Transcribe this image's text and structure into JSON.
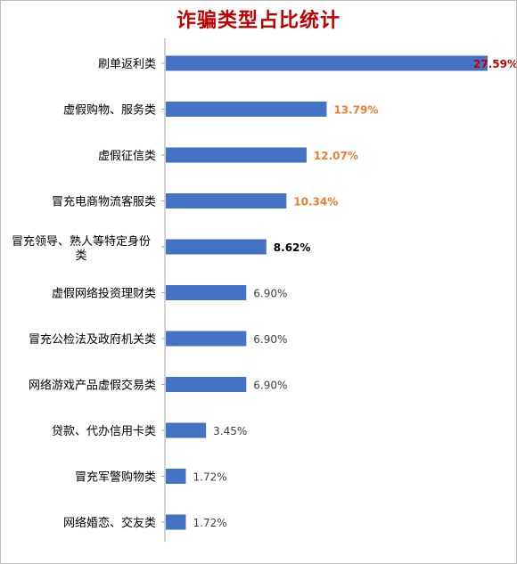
{
  "chart_data": {
    "type": "bar",
    "orientation": "horizontal",
    "title": "诈骗类型占比统计",
    "title_color": "#c00000",
    "bar_color": "#4472c4",
    "categories": [
      "刷单返利类",
      "虚假购物、服务类",
      "虚假征信类",
      "冒充电商物流客服类",
      "冒充领导、熟人等特定身份类",
      "虚假网络投资理财类",
      "冒充公检法及政府机关类",
      "网络游戏产品虚假交易类",
      "贷款、代办信用卡类",
      "冒充军警购物类",
      "网络婚恋、交友类"
    ],
    "category_lines": [
      [
        "刷单返利类"
      ],
      [
        "虚假购物、服务类"
      ],
      [
        "虚假征信类"
      ],
      [
        "冒充电商物流客服类"
      ],
      [
        "冒充领导、熟人等特定身份",
        "类"
      ],
      [
        "虚假网络投资理财类"
      ],
      [
        "冒充公检法及政府机关类"
      ],
      [
        "网络游戏产品虚假交易类"
      ],
      [
        "贷款、代办信用卡类"
      ],
      [
        "冒充军警购物类"
      ],
      [
        "网络婚恋、交友类"
      ]
    ],
    "values": [
      27.59,
      13.79,
      12.07,
      10.34,
      8.62,
      6.9,
      6.9,
      6.9,
      3.45,
      1.72,
      1.72
    ],
    "data_labels": [
      "27.59%",
      "13.79%",
      "12.07%",
      "10.34%",
      "8.62%",
      "6.90%",
      "6.90%",
      "6.90%",
      "3.45%",
      "1.72%",
      "1.72%"
    ],
    "label_colors": [
      "#c00000",
      "#ed7d31",
      "#ed7d31",
      "#ed7d31",
      "#000000",
      "#404040",
      "#404040",
      "#404040",
      "#404040",
      "#404040",
      "#404040"
    ],
    "label_bold": [
      true,
      true,
      true,
      true,
      true,
      false,
      false,
      false,
      false,
      false,
      false
    ],
    "xlim": [
      0,
      27.59
    ],
    "grid": false,
    "legend": "none"
  }
}
